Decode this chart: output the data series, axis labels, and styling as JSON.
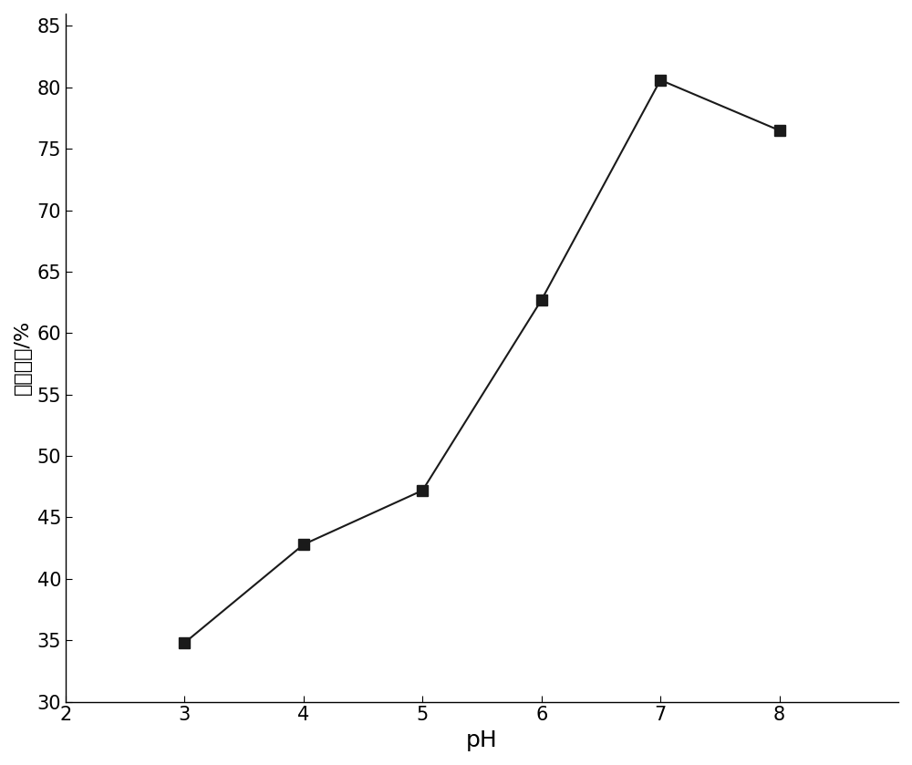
{
  "x": [
    3,
    4,
    5,
    6,
    7,
    8
  ],
  "y": [
    34.8,
    42.8,
    47.2,
    62.7,
    80.6,
    76.5
  ],
  "line_color": "#1a1a1a",
  "marker": "s",
  "marker_color": "#1a1a1a",
  "marker_size": 8,
  "line_width": 1.5,
  "xlabel": "pH",
  "ylabel": "吸附效率/%",
  "xlim": [
    2,
    9
  ],
  "ylim": [
    30,
    86
  ],
  "xticks": [
    2,
    3,
    4,
    5,
    6,
    7,
    8
  ],
  "yticks": [
    30,
    35,
    40,
    45,
    50,
    55,
    60,
    65,
    70,
    75,
    80,
    85
  ],
  "xlabel_fontsize": 18,
  "ylabel_fontsize": 16,
  "tick_fontsize": 15,
  "background_color": "#ffffff"
}
